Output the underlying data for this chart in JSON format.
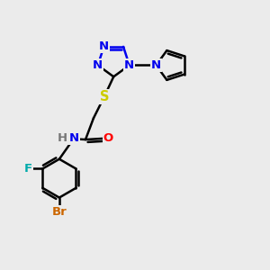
{
  "bg_color": "#ebebeb",
  "bond_color": "#000000",
  "bond_width": 1.8,
  "atom_colors": {
    "N": "#0000ee",
    "S": "#cccc00",
    "O": "#ff0000",
    "F": "#00aaaa",
    "Br": "#cc6600",
    "C": "#000000"
  },
  "font_size": 9.5
}
